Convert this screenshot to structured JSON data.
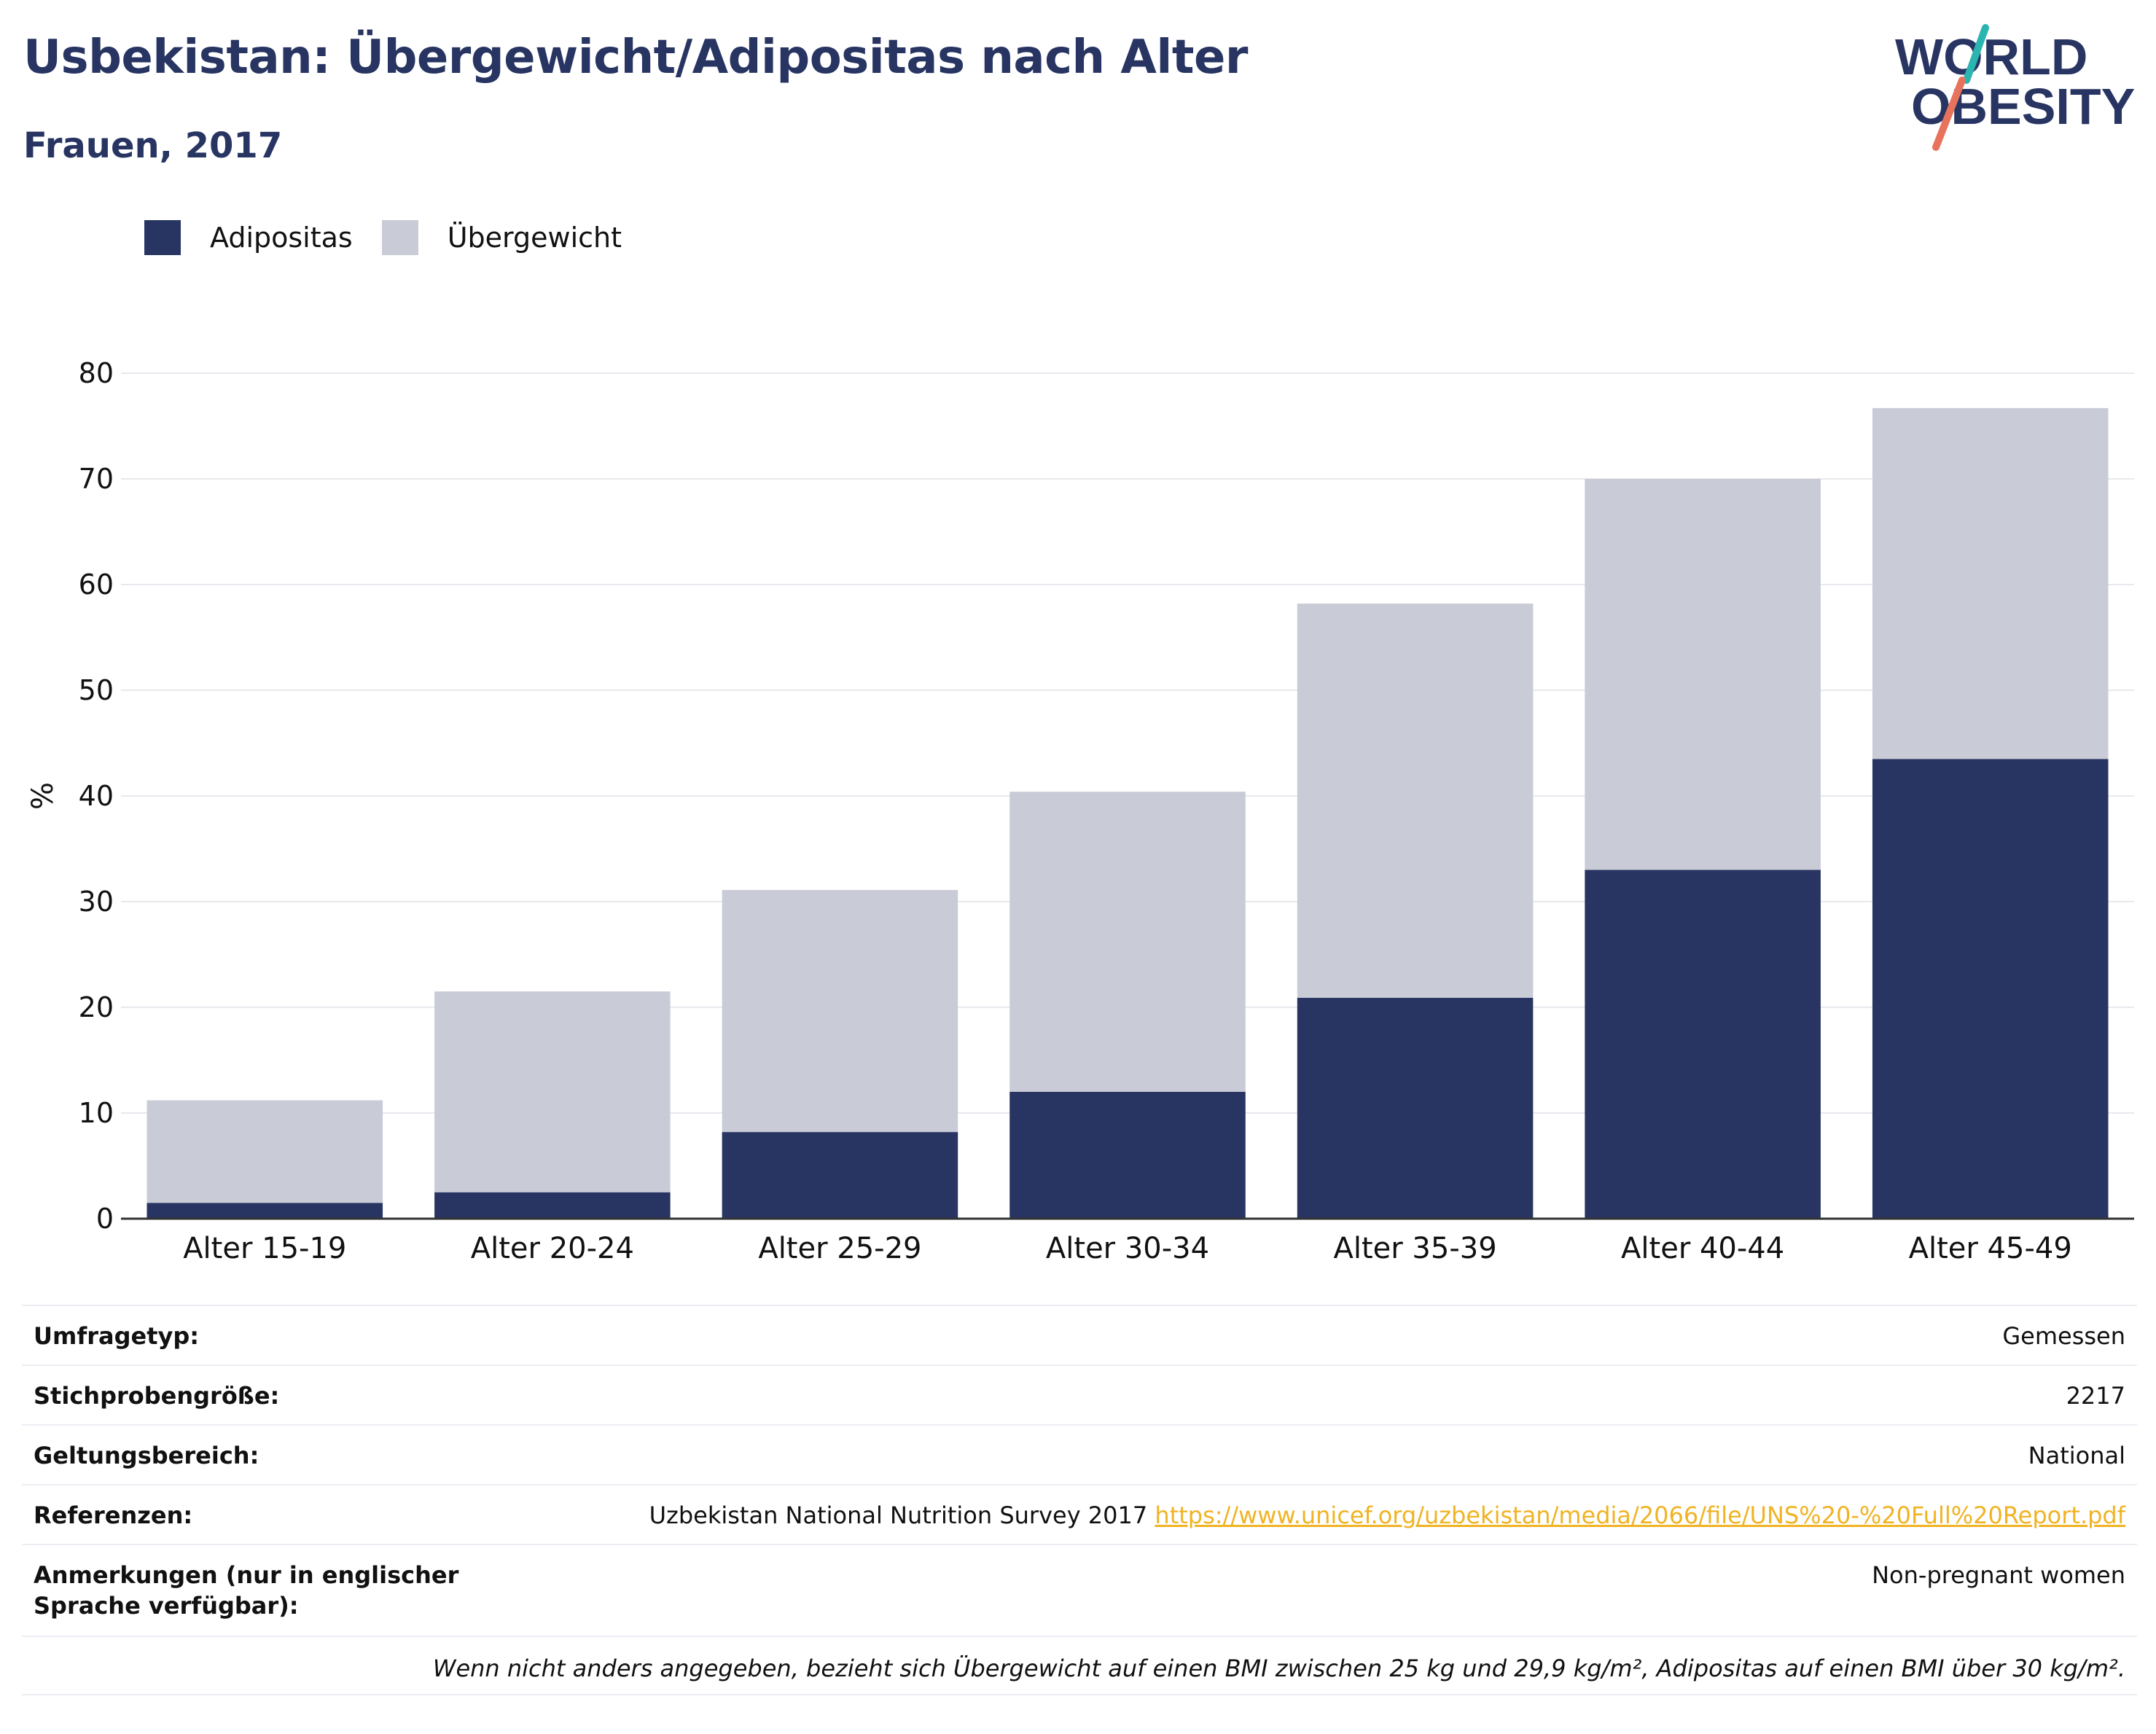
{
  "header": {
    "title": "Usbekistan: Übergewicht/Adipositas nach Alter",
    "subtitle": "Frauen, 2017",
    "logo_line1": "WORLD",
    "logo_line2": "OBESITY"
  },
  "colors": {
    "adipositas": "#283562",
    "uebergewicht": "#c9cbd7",
    "title": "#283562",
    "link": "#f0b323",
    "logo_teal": "#2bb5b0",
    "logo_coral": "#e8735c"
  },
  "legend": [
    {
      "label": "Adipositas",
      "color": "#283562"
    },
    {
      "label": "Übergewicht",
      "color": "#c9cbd7"
    }
  ],
  "chart_data": {
    "type": "bar",
    "stacked": true,
    "categories": [
      "Alter 15-19",
      "Alter 20-24",
      "Alter 25-29",
      "Alter 30-34",
      "Alter 35-39",
      "Alter 40-44",
      "Alter 45-49"
    ],
    "series": [
      {
        "name": "Adipositas",
        "values": [
          1.5,
          2.5,
          8.2,
          12.0,
          20.9,
          33.0,
          43.5
        ]
      },
      {
        "name": "Übergewicht",
        "values": [
          9.7,
          19.0,
          22.9,
          28.4,
          37.3,
          37.0,
          33.2
        ]
      }
    ],
    "ylabel": "%",
    "ylim": [
      0,
      80
    ],
    "yticks": [
      0,
      10,
      20,
      30,
      40,
      50,
      60,
      70,
      80
    ],
    "grid": true,
    "legend_position": "top-left"
  },
  "meta": {
    "rows": [
      {
        "label": "Umfragetyp:",
        "value": "Gemessen"
      },
      {
        "label": "Stichprobengröße:",
        "value": "2217"
      },
      {
        "label": "Geltungsbereich:",
        "value": "National"
      },
      {
        "label": "Referenzen:",
        "value": "Uzbekistan National Nutrition Survey 2017",
        "link": "https://www.unicef.org/uzbekistan/media/2066/file/UNS%20-%20Full%20Report.pdf"
      },
      {
        "label": "Anmerkungen (nur in englischer Sprache verfügbar):",
        "value": "Non-pregnant women"
      }
    ],
    "note": "Wenn nicht anders angegeben, bezieht sich Übergewicht auf einen BMI zwischen 25 kg und 29,9 kg/m², Adipositas auf einen BMI über 30 kg/m²."
  }
}
